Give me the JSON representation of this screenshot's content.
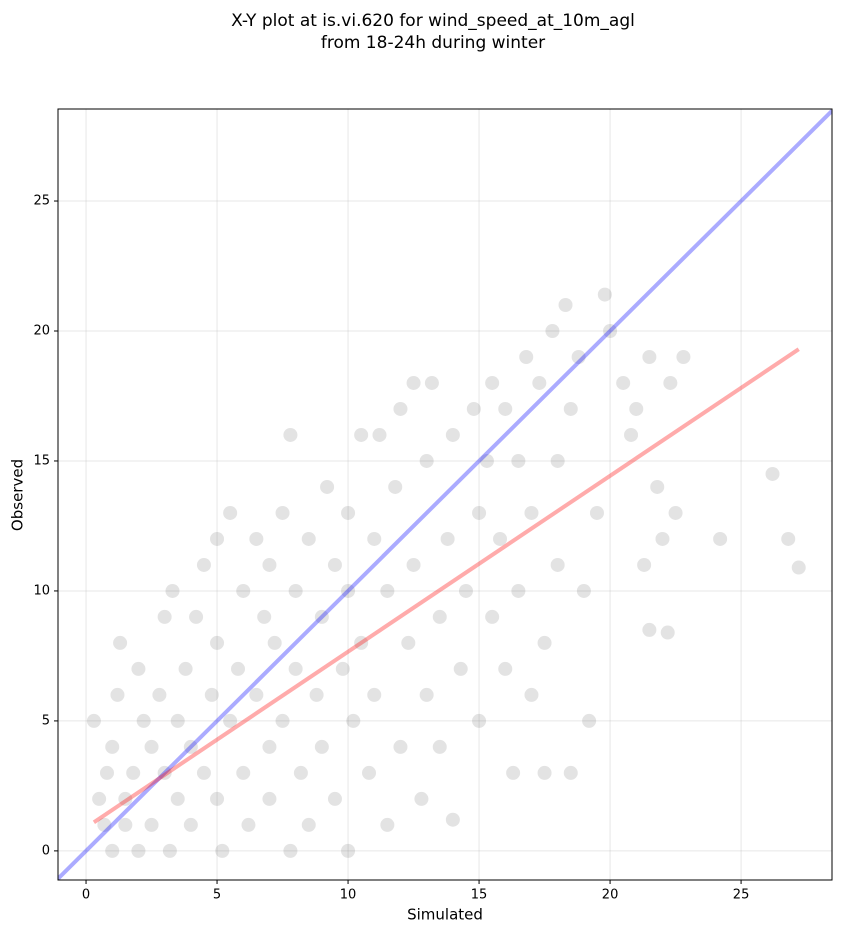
{
  "chart_data": {
    "type": "scatter",
    "title": [
      "X-Y plot at is.vi.620 for wind_speed_at_10m_agl",
      "from 18-24h during winter"
    ],
    "xlabel": "Simulated",
    "ylabel": "Observed",
    "xlim": [
      -1.07,
      28.47
    ],
    "ylim": [
      -1.12,
      28.54
    ],
    "xticks": [
      0,
      5,
      10,
      15,
      20,
      25
    ],
    "yticks": [
      0,
      5,
      10,
      15,
      20,
      25
    ],
    "grid": true,
    "series": [
      {
        "color": "#444444",
        "x": [
          0.3,
          0.5,
          0.7,
          0.8,
          1,
          1,
          1.2,
          1.3,
          1.5,
          1.5,
          1.8,
          2,
          2,
          2.2,
          2.5,
          2.5,
          2.8,
          3,
          3,
          3.2,
          3.3,
          3.5,
          3.5,
          3.8,
          4,
          4,
          4.2,
          4.5,
          4.5,
          4.8,
          5,
          5,
          5,
          5.2,
          5.5,
          5.5,
          5.8,
          6,
          6,
          6.2,
          6.5,
          6.5,
          6.8,
          7,
          7,
          7,
          7.2,
          7.5,
          7.5,
          7.8,
          7.8,
          8,
          8,
          8.2,
          8.5,
          8.5,
          8.8,
          9,
          9,
          9.2,
          9.5,
          9.5,
          9.8,
          10,
          10,
          10,
          10.2,
          10.5,
          10.5,
          10.8,
          11,
          11,
          11.2,
          11.5,
          11.5,
          11.8,
          12,
          12,
          12.3,
          12.5,
          12.5,
          12.8,
          13,
          13,
          13.2,
          13.5,
          13.5,
          13.8,
          14,
          14,
          14.3,
          14.5,
          14.8,
          15,
          15,
          15.3,
          15.5,
          15.5,
          15.8,
          16,
          16,
          16.3,
          16.5,
          16.5,
          16.8,
          17,
          17,
          17.3,
          17.5,
          17.5,
          17.8,
          18,
          18,
          18.3,
          18.5,
          18.5,
          18.8,
          19,
          19.2,
          19.5,
          19.8,
          20,
          20.5,
          20.8,
          21,
          21.3,
          21.5,
          21.5,
          21.8,
          22,
          22.2,
          22.3,
          22.5,
          22.8,
          24.2,
          26.2,
          26.8,
          27.2
        ],
        "values": [
          5,
          2,
          1,
          3,
          0,
          4,
          6,
          8,
          2,
          1,
          3,
          7,
          0,
          5,
          1,
          4,
          6,
          3,
          9,
          0,
          10,
          2,
          5,
          7,
          1,
          4,
          9,
          11,
          3,
          6,
          2,
          8,
          12,
          0,
          5,
          13,
          7,
          3,
          10,
          1,
          6,
          12,
          9,
          4,
          2,
          11,
          8,
          5,
          13,
          16,
          0,
          7,
          10,
          3,
          12,
          1,
          6,
          9,
          4,
          14,
          11,
          2,
          7,
          0,
          10,
          13,
          5,
          16,
          8,
          3,
          12,
          6,
          16,
          10,
          1,
          14,
          4,
          17,
          8,
          11,
          18,
          2,
          15,
          6,
          18,
          9,
          4,
          12,
          16,
          1.2,
          7,
          10,
          17,
          13,
          5,
          15,
          18,
          9,
          12,
          17,
          7,
          3,
          15,
          10,
          19,
          13,
          6,
          18,
          8,
          3,
          20,
          15,
          11,
          21,
          17,
          3,
          19,
          10,
          5,
          13,
          21.4,
          20,
          18,
          16,
          17,
          11,
          8.5,
          19,
          14,
          12,
          8.4,
          18,
          13,
          19,
          12,
          14.5,
          12,
          10.9
        ]
      }
    ],
    "lines": [
      {
        "color": "#0000ff",
        "x": [
          -1.07,
          28.47
        ],
        "values": [
          -1.07,
          28.47
        ]
      },
      {
        "color": "#ff0000",
        "x": [
          0.3,
          27.2
        ],
        "values": [
          1.1,
          19.3
        ]
      }
    ]
  }
}
